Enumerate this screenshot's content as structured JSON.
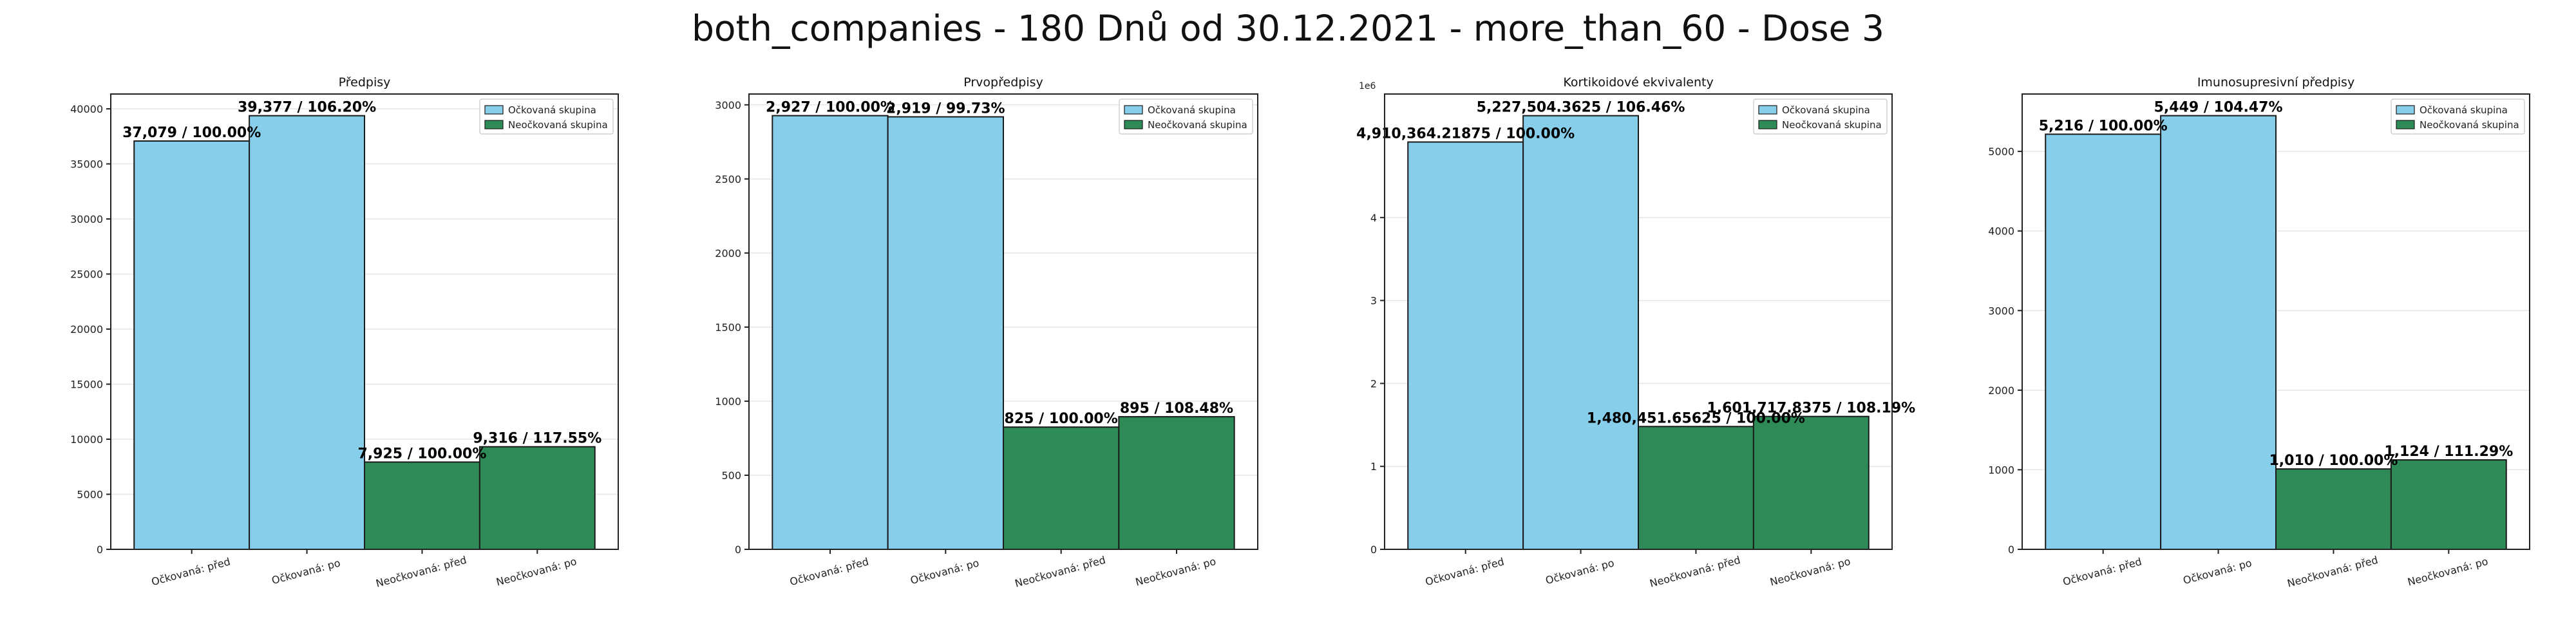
{
  "suptitle": "both_companies - 180 Dnů od 30.12.2021 - more_than_60 - Dose 3",
  "legend": {
    "vaccinated": "Očkovaná skupina",
    "unvaccinated": "Neočkovaná skupina"
  },
  "colors": {
    "vaccinated": "#87ceeb",
    "unvaccinated": "#2e8b57",
    "edge": "#1a1a1a",
    "grid": "#e6e6e6"
  },
  "chart_data": [
    {
      "type": "bar",
      "title": "Předpisy",
      "categories": [
        "Očkovaná: před",
        "Očkovaná: po",
        "Neočkovaná: před",
        "Neočkovaná: po"
      ],
      "values": [
        37079,
        39377,
        7925,
        9316
      ],
      "labels": [
        "37,079 / 100.00%",
        "39,377 / 106.20%",
        "7,925 / 100.00%",
        "9,316 / 117.55%"
      ],
      "groups": [
        "vaccinated",
        "vaccinated",
        "unvaccinated",
        "unvaccinated"
      ],
      "yticks": [
        "0",
        "5000",
        "10000",
        "15000",
        "20000",
        "25000",
        "30000",
        "35000",
        "40000"
      ],
      "ytick_values": [
        0,
        5000,
        10000,
        15000,
        20000,
        25000,
        30000,
        35000,
        40000
      ],
      "ylim": [
        0,
        41346
      ],
      "offset_text": "",
      "grid": true,
      "legend_loc": "top-right"
    },
    {
      "type": "bar",
      "title": "Prvopředpisy",
      "categories": [
        "Očkovaná: před",
        "Očkovaná: po",
        "Neočkovaná: před",
        "Neočkovaná: po"
      ],
      "values": [
        2927,
        2919,
        825,
        895
      ],
      "labels": [
        "2,927 / 100.00%",
        "2,919 / 99.73%",
        "825 / 100.00%",
        "895 / 108.48%"
      ],
      "groups": [
        "vaccinated",
        "vaccinated",
        "unvaccinated",
        "unvaccinated"
      ],
      "yticks": [
        "0",
        "500",
        "1000",
        "1500",
        "2000",
        "2500",
        "3000"
      ],
      "ytick_values": [
        0,
        500,
        1000,
        1500,
        2000,
        2500,
        3000
      ],
      "ylim": [
        0,
        3073
      ],
      "offset_text": "",
      "grid": true,
      "legend_loc": "top-right"
    },
    {
      "type": "bar",
      "title": "Kortikoidové ekvivalenty",
      "categories": [
        "Očkovaná: před",
        "Očkovaná: po",
        "Neočkovaná: před",
        "Neočkovaná: po"
      ],
      "values": [
        4910364.21875,
        5227504.3625,
        1480451.65625,
        1601717.8375
      ],
      "labels": [
        "4,910,364.21875 / 100.00%",
        "5,227,504.3625 / 106.46%",
        "1,480,451.65625 / 100.00%",
        "1,601,717.8375 / 108.19%"
      ],
      "groups": [
        "vaccinated",
        "vaccinated",
        "unvaccinated",
        "unvaccinated"
      ],
      "yticks": [
        "0",
        "1",
        "2",
        "3",
        "4"
      ],
      "ytick_values": [
        0,
        1000000,
        2000000,
        3000000,
        4000000
      ],
      "ylim": [
        0,
        5488880
      ],
      "offset_text": "1e6",
      "grid": true,
      "legend_loc": "top-right"
    },
    {
      "type": "bar",
      "title": "Imunosupresivní předpisy",
      "categories": [
        "Očkovaná: před",
        "Očkovaná: po",
        "Neočkovaná: před",
        "Neočkovaná: po"
      ],
      "values": [
        5216,
        5449,
        1010,
        1124
      ],
      "labels": [
        "5,216 / 100.00%",
        "5,449 / 104.47%",
        "1,010 / 100.00%",
        "1,124 / 111.29%"
      ],
      "groups": [
        "vaccinated",
        "vaccinated",
        "unvaccinated",
        "unvaccinated"
      ],
      "yticks": [
        "0",
        "1000",
        "2000",
        "3000",
        "4000",
        "5000"
      ],
      "ytick_values": [
        0,
        1000,
        2000,
        3000,
        4000,
        5000
      ],
      "ylim": [
        0,
        5721
      ],
      "offset_text": "",
      "grid": true,
      "legend_loc": "top-right"
    }
  ]
}
